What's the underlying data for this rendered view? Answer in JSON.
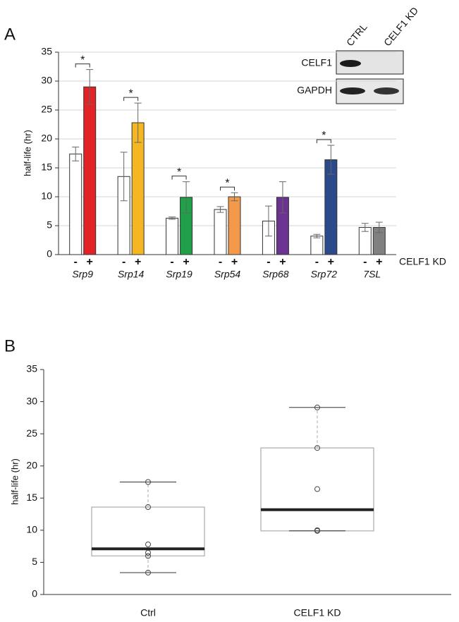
{
  "chart_data": [
    {
      "type": "bar",
      "panel_label": "A",
      "ylabel": "half-life (hr)",
      "categories": [
        "Srp9",
        "Srp14",
        "Srp19",
        "Srp54",
        "Srp68",
        "Srp72",
        "7SL"
      ],
      "series": [
        {
          "name": "-",
          "color": "#ffffff",
          "values": [
            17.4,
            13.5,
            6.3,
            7.8,
            5.8,
            3.2,
            4.7
          ],
          "errors": [
            1.2,
            4.2,
            0.2,
            0.5,
            2.6,
            0.3,
            0.7
          ]
        },
        {
          "name": "+",
          "colors": [
            "#e32228",
            "#f5b623",
            "#1fa049",
            "#f39a4a",
            "#6c3291",
            "#2b4a8c",
            "#808080"
          ],
          "values": [
            29,
            22.8,
            9.9,
            10,
            9.9,
            16.4,
            4.7
          ],
          "errors": [
            3,
            3.4,
            2.7,
            0.7,
            2.7,
            2.5,
            0.9
          ]
        }
      ],
      "group_label": "CELF1 KD",
      "significant": [
        true,
        true,
        true,
        true,
        false,
        true,
        false
      ],
      "significance_label": "*",
      "ylim": [
        0,
        35
      ],
      "yticks": [
        0,
        5,
        10,
        15,
        20,
        25,
        30,
        35
      ],
      "grid": true,
      "blot": {
        "columns": [
          "CTRL",
          "CELF1 KD"
        ],
        "rows": [
          "CELF1",
          "GAPDH"
        ]
      }
    },
    {
      "type": "box",
      "panel_label": "B",
      "ylabel": "half-life (hr)",
      "categories": [
        "Ctrl",
        "CELF1 KD"
      ],
      "boxes": [
        {
          "whisker_low": 3.4,
          "q1": 6.0,
          "median": 7.1,
          "q3": 13.6,
          "whisker_high": 17.5,
          "points": [
            17.5,
            13.6,
            7.8,
            6.5,
            6.0,
            3.4
          ]
        },
        {
          "whisker_low": 9.9,
          "q1": 9.9,
          "median": 13.2,
          "q3": 22.8,
          "whisker_high": 29.1,
          "points": [
            29.1,
            22.8,
            16.4,
            10.0,
            9.9
          ]
        }
      ],
      "ylim": [
        0,
        35
      ],
      "yticks": [
        0,
        5,
        10,
        15,
        20,
        25,
        30,
        35
      ],
      "grid": false
    }
  ]
}
